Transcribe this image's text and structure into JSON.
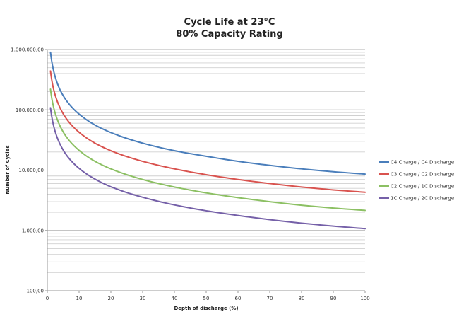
{
  "chart_data": {
    "type": "line",
    "title": "Cycle Life at 23°C",
    "subtitle": "80% Capacity Rating",
    "xlabel": "Depth of discharge (%)",
    "ylabel": "Number of Cycles",
    "xlim": [
      0,
      100
    ],
    "ylim": [
      100,
      1000000
    ],
    "yscale": "log",
    "grid": true,
    "legend_position": "right",
    "x_ticks": [
      "0",
      "10",
      "20",
      "30",
      "40",
      "50",
      "60",
      "70",
      "80",
      "90",
      "100"
    ],
    "y_ticks": [
      "100,00",
      "1.000,00",
      "10.000,00",
      "100.000,00",
      "1.000.000,00"
    ],
    "y_tick_values": [
      100,
      1000,
      10000,
      100000,
      1000000
    ],
    "x": [
      1,
      2,
      3,
      4,
      5,
      7,
      10,
      15,
      20,
      30,
      40,
      50,
      60,
      70,
      80,
      90,
      100
    ],
    "series": [
      {
        "name": "C4 Charge / C4 Discharge",
        "color": "#4a7ebb",
        "values": [
          900000,
          440000,
          290000,
          215000,
          172000,
          122000,
          85000,
          56000,
          42000,
          28000,
          21000,
          17000,
          14000,
          12000,
          10500,
          9400,
          8600
        ]
      },
      {
        "name": "C3 Charge / C2 Discharge",
        "color": "#d9534f",
        "values": [
          440000,
          218000,
          145000,
          108000,
          86000,
          61000,
          42500,
          28000,
          21000,
          14000,
          10500,
          8400,
          7000,
          6000,
          5250,
          4700,
          4300
        ]
      },
      {
        "name": "C2 Charge / 1C Discharge",
        "color": "#8cc063",
        "values": [
          220000,
          109000,
          72500,
          54000,
          43000,
          30500,
          21300,
          14000,
          10500,
          7000,
          5250,
          4200,
          3500,
          3000,
          2620,
          2350,
          2150
        ]
      },
      {
        "name": "1C Charge / 2C Discharge",
        "color": "#7560a8",
        "values": [
          108000,
          54000,
          36000,
          27000,
          21500,
          15300,
          10700,
          7100,
          5300,
          3550,
          2650,
          2120,
          1770,
          1510,
          1320,
          1180,
          1070
        ]
      }
    ]
  }
}
